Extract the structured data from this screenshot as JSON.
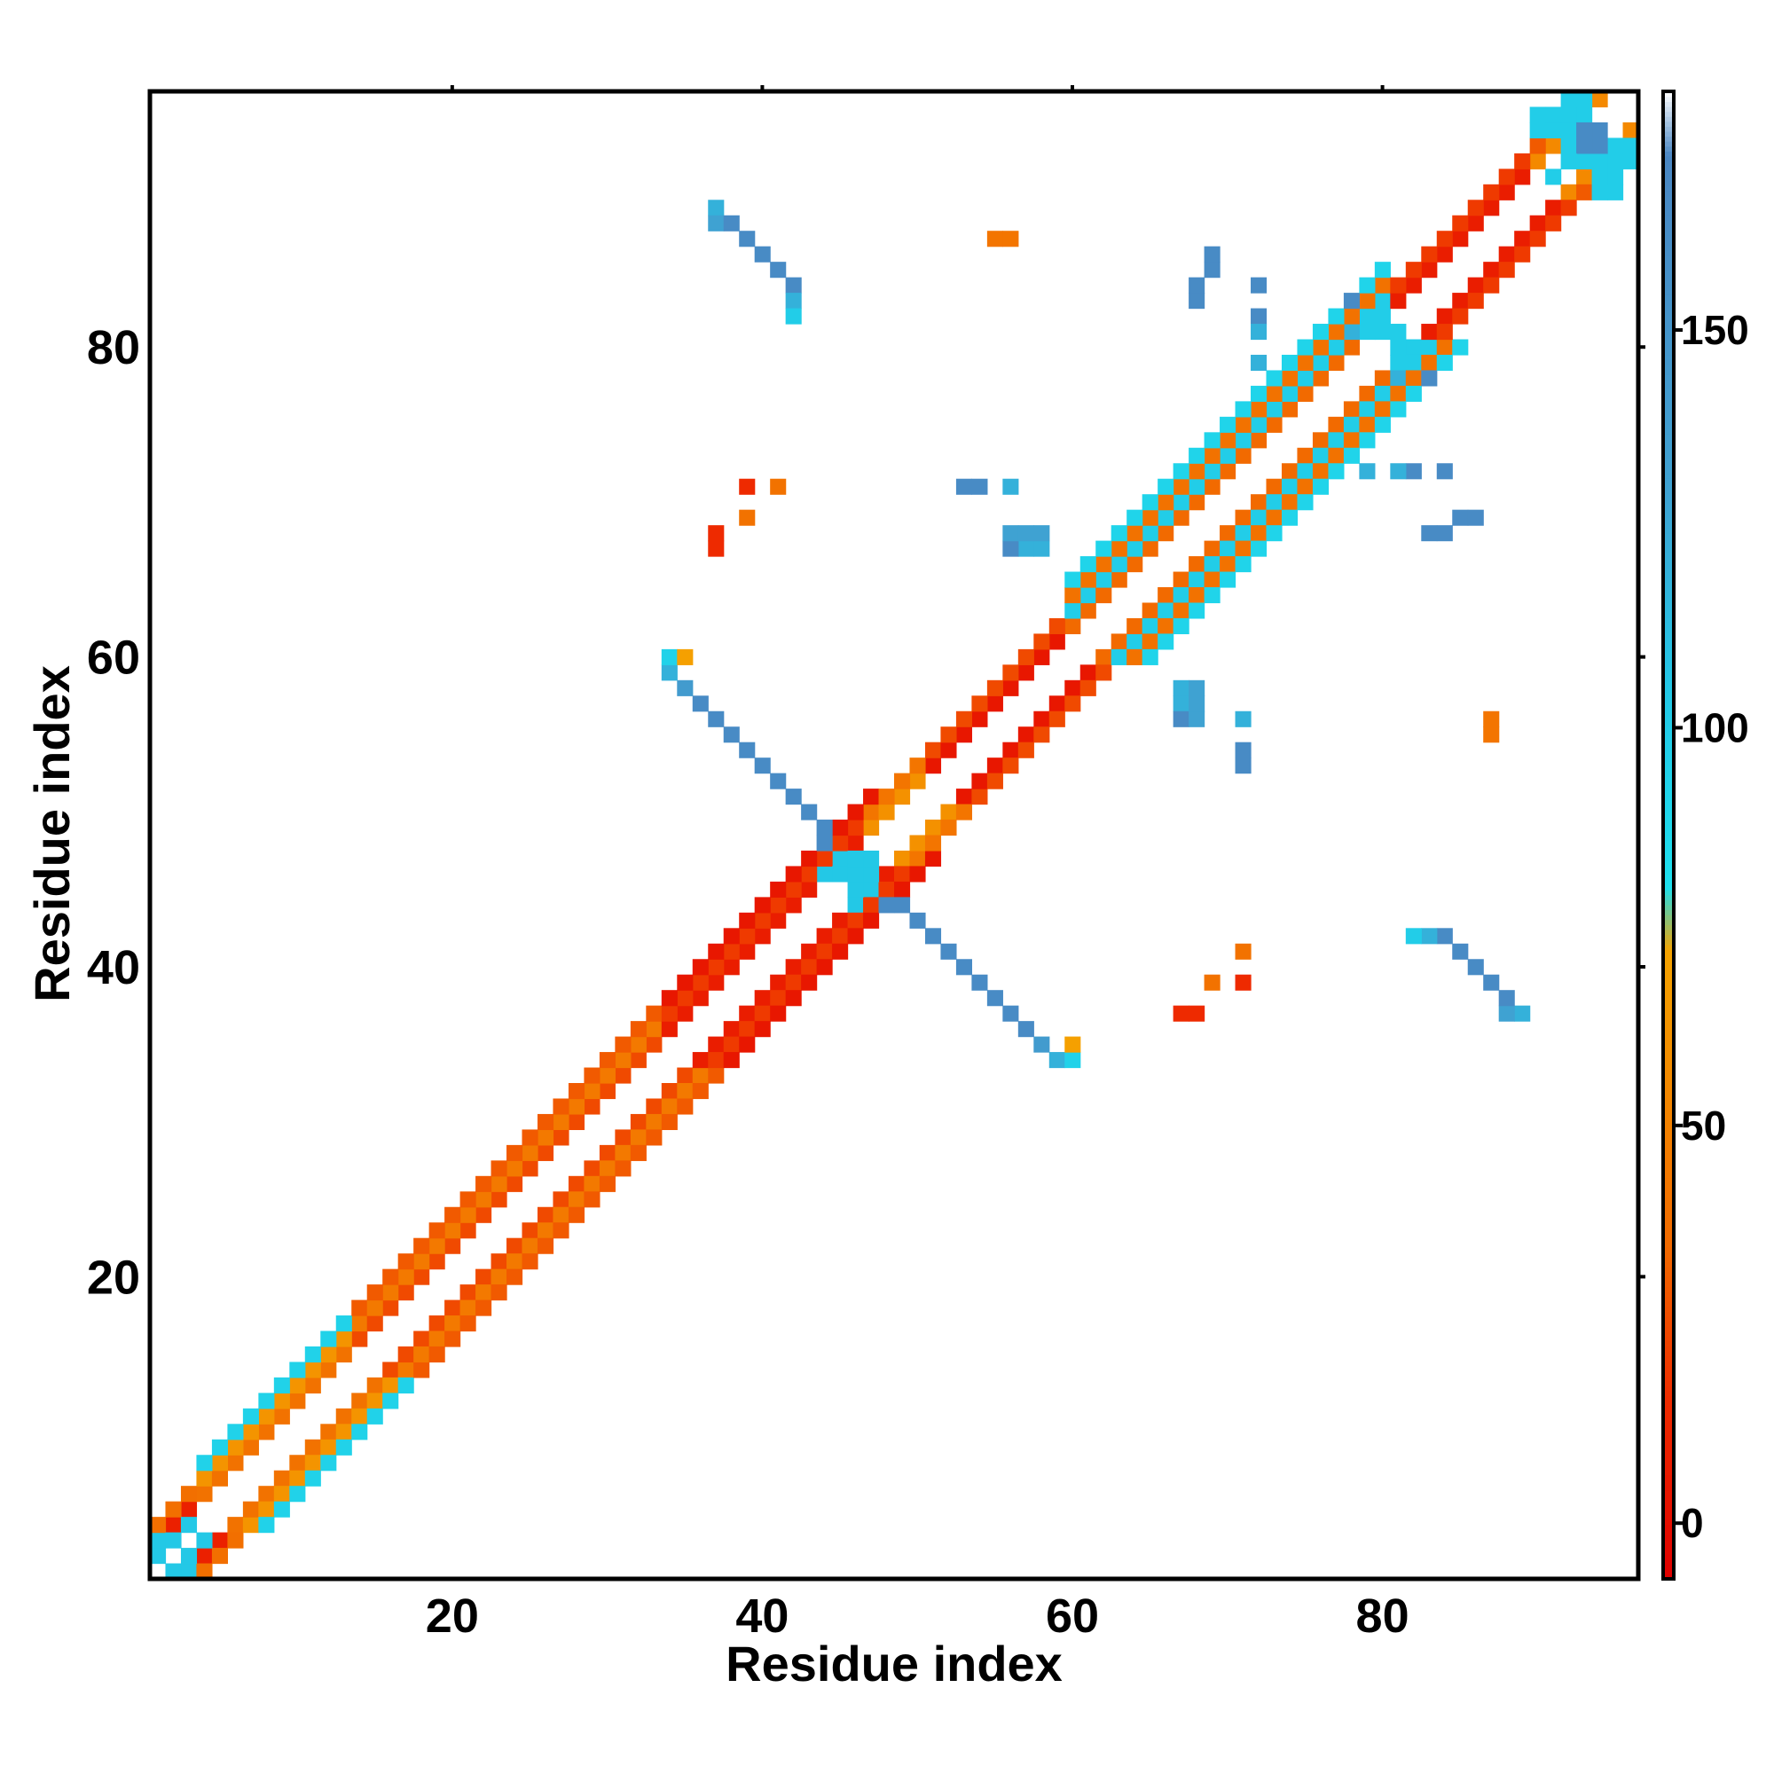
{
  "chart_data": {
    "type": "heatmap",
    "title": "",
    "xlabel": "Residue index",
    "ylabel": "Residue index",
    "xlim": [
      0.5,
      96.5
    ],
    "ylim": [
      0.5,
      96.5
    ],
    "x_ticks": [
      20,
      40,
      60,
      80
    ],
    "y_ticks": [
      20,
      40,
      60,
      80
    ],
    "colorbar": {
      "ticks": [
        0,
        50,
        100,
        150
      ],
      "range": [
        -7,
        180
      ],
      "stops": [
        {
          "value": -7,
          "color": "#e00000"
        },
        {
          "value": 15,
          "color": "#ee2a00"
        },
        {
          "value": 35,
          "color": "#f26a00"
        },
        {
          "value": 72,
          "color": "#f5a300"
        },
        {
          "value": 80,
          "color": "#1ee0ee"
        },
        {
          "value": 105,
          "color": "#23c8e6"
        },
        {
          "value": 130,
          "color": "#3fa2d2"
        },
        {
          "value": 172,
          "color": "#4a86c2"
        },
        {
          "value": 180,
          "color": "#ffffff"
        }
      ]
    },
    "pair_value_rule": "value(i,j) = value(j,i); cells with |i-j| = 1 or those not listed are empty (white)",
    "segments": [
      {
        "residues": [
          1,
          4
        ],
        "i_minus_j": 2,
        "value": 10
      },
      {
        "residues": [
          1,
          4
        ],
        "i_minus_j": 3,
        "value": 38
      },
      {
        "residues": [
          1,
          3
        ],
        "i_minus_j": 1,
        "value": 105
      },
      {
        "residues": [
          4,
          14
        ],
        "i_minus_j": 2,
        "value": 40
      },
      {
        "residues": [
          4,
          14
        ],
        "i_minus_j": 3,
        "value": 62
      },
      {
        "residues": [
          4,
          14
        ],
        "i_minus_j": 4,
        "value": 95
      },
      {
        "residues": [
          14,
          33
        ],
        "i_minus_j": 2,
        "value": 25
      },
      {
        "residues": [
          14,
          33
        ],
        "i_minus_j": 3,
        "value": 45
      },
      {
        "residues": [
          14,
          33
        ],
        "i_minus_j": 4,
        "value": 30
      },
      {
        "residues": [
          34,
          47
        ],
        "i_minus_j": 2,
        "value": 8
      },
      {
        "residues": [
          34,
          47
        ],
        "i_minus_j": 3,
        "value": 20
      },
      {
        "residues": [
          34,
          47
        ],
        "i_minus_j": 4,
        "value": 5
      },
      {
        "residues": [
          47,
          51
        ],
        "i_minus_j": 2,
        "value": 60
      },
      {
        "residues": [
          47,
          51
        ],
        "i_minus_j": 3,
        "value": 42
      },
      {
        "residues": [
          51,
          61
        ],
        "i_minus_j": 2,
        "value": 5
      },
      {
        "residues": [
          51,
          61
        ],
        "i_minus_j": 3,
        "value": 25
      },
      {
        "residues": [
          60,
          80
        ],
        "i_minus_j": 2,
        "value": 35
      },
      {
        "residues": [
          60,
          80
        ],
        "i_minus_j": 3,
        "value": 100
      },
      {
        "residues": [
          60,
          80
        ],
        "i_minus_j": 4,
        "value": 40
      },
      {
        "residues": [
          60,
          80
        ],
        "i_minus_j": 5,
        "value": 92
      },
      {
        "residues": [
          80,
          92
        ],
        "i_minus_j": 2,
        "value": 8
      },
      {
        "residues": [
          80,
          92
        ],
        "i_minus_j": 3,
        "value": 20
      },
      {
        "residues": [
          90,
          96
        ],
        "i_minus_j": 2,
        "value": 55
      },
      {
        "residues": [
          90,
          96
        ],
        "i_minus_j": 3,
        "value": 30
      }
    ],
    "cells": [
      {
        "x": 2,
        "y": 1,
        "value": 105
      },
      {
        "x": 3,
        "y": 1,
        "value": 105
      },
      {
        "x": 45,
        "y": 46,
        "value": 105
      },
      {
        "x": 46,
        "y": 45,
        "value": 105
      },
      {
        "x": 46,
        "y": 46,
        "value": 105
      },
      {
        "x": 45,
        "y": 47,
        "value": 105
      },
      {
        "x": 47,
        "y": 45,
        "value": 105
      },
      {
        "x": 46,
        "y": 47,
        "value": 105
      },
      {
        "x": 47,
        "y": 46,
        "value": 105
      },
      {
        "x": 46,
        "y": 44,
        "value": 105
      },
      {
        "x": 44,
        "y": 46,
        "value": 105
      },
      {
        "x": 47,
        "y": 47,
        "value": 105
      },
      {
        "x": 48,
        "y": 44,
        "value": 165
      },
      {
        "x": 49,
        "y": 44,
        "value": 165
      },
      {
        "x": 50,
        "y": 43,
        "value": 165
      },
      {
        "x": 51,
        "y": 42,
        "value": 165
      },
      {
        "x": 52,
        "y": 41,
        "value": 165
      },
      {
        "x": 53,
        "y": 40,
        "value": 165
      },
      {
        "x": 54,
        "y": 39,
        "value": 165
      },
      {
        "x": 55,
        "y": 38,
        "value": 165
      },
      {
        "x": 56,
        "y": 37,
        "value": 165
      },
      {
        "x": 57,
        "y": 36,
        "value": 165
      },
      {
        "x": 58,
        "y": 35,
        "value": 140
      },
      {
        "x": 59,
        "y": 34,
        "value": 120
      },
      {
        "x": 60,
        "y": 34,
        "value": 95
      },
      {
        "x": 60,
        "y": 35,
        "value": 70
      },
      {
        "x": 44,
        "y": 48,
        "value": 165
      },
      {
        "x": 44,
        "y": 49,
        "value": 165
      },
      {
        "x": 43,
        "y": 50,
        "value": 165
      },
      {
        "x": 42,
        "y": 51,
        "value": 165
      },
      {
        "x": 41,
        "y": 52,
        "value": 165
      },
      {
        "x": 40,
        "y": 53,
        "value": 165
      },
      {
        "x": 39,
        "y": 54,
        "value": 165
      },
      {
        "x": 38,
        "y": 55,
        "value": 165
      },
      {
        "x": 37,
        "y": 56,
        "value": 165
      },
      {
        "x": 36,
        "y": 57,
        "value": 165
      },
      {
        "x": 35,
        "y": 58,
        "value": 140
      },
      {
        "x": 34,
        "y": 59,
        "value": 120
      },
      {
        "x": 34,
        "y": 60,
        "value": 95
      },
      {
        "x": 35,
        "y": 60,
        "value": 70
      },
      {
        "x": 37,
        "y": 89,
        "value": 120
      },
      {
        "x": 37,
        "y": 88,
        "value": 130
      },
      {
        "x": 38,
        "y": 88,
        "value": 165
      },
      {
        "x": 39,
        "y": 87,
        "value": 165
      },
      {
        "x": 40,
        "y": 86,
        "value": 165
      },
      {
        "x": 41,
        "y": 85,
        "value": 165
      },
      {
        "x": 42,
        "y": 84,
        "value": 165
      },
      {
        "x": 42,
        "y": 83,
        "value": 120
      },
      {
        "x": 42,
        "y": 82,
        "value": 100
      },
      {
        "x": 89,
        "y": 37,
        "value": 120
      },
      {
        "x": 88,
        "y": 37,
        "value": 130
      },
      {
        "x": 88,
        "y": 38,
        "value": 165
      },
      {
        "x": 87,
        "y": 39,
        "value": 165
      },
      {
        "x": 86,
        "y": 40,
        "value": 165
      },
      {
        "x": 85,
        "y": 41,
        "value": 165
      },
      {
        "x": 84,
        "y": 42,
        "value": 165
      },
      {
        "x": 83,
        "y": 42,
        "value": 120
      },
      {
        "x": 82,
        "y": 42,
        "value": 100
      },
      {
        "x": 55,
        "y": 87,
        "value": 42
      },
      {
        "x": 56,
        "y": 87,
        "value": 42
      },
      {
        "x": 87,
        "y": 56,
        "value": 42
      },
      {
        "x": 87,
        "y": 55,
        "value": 42
      },
      {
        "x": 68,
        "y": 84,
        "value": 165
      },
      {
        "x": 68,
        "y": 83,
        "value": 165
      },
      {
        "x": 72,
        "y": 82,
        "value": 165
      },
      {
        "x": 72,
        "y": 79,
        "value": 120
      },
      {
        "x": 71,
        "y": 56,
        "value": 120
      },
      {
        "x": 71,
        "y": 54,
        "value": 165
      },
      {
        "x": 71,
        "y": 53,
        "value": 165
      },
      {
        "x": 67,
        "y": 58,
        "value": 120
      },
      {
        "x": 67,
        "y": 57,
        "value": 120
      },
      {
        "x": 67,
        "y": 56,
        "value": 165
      },
      {
        "x": 53,
        "y": 71,
        "value": 165
      },
      {
        "x": 54,
        "y": 71,
        "value": 165
      },
      {
        "x": 56,
        "y": 71,
        "value": 120
      },
      {
        "x": 56,
        "y": 68,
        "value": 130
      },
      {
        "x": 57,
        "y": 68,
        "value": 130
      },
      {
        "x": 58,
        "y": 68,
        "value": 130
      },
      {
        "x": 81,
        "y": 72,
        "value": 120
      },
      {
        "x": 84,
        "y": 72,
        "value": 165
      },
      {
        "x": 85,
        "y": 69,
        "value": 165
      },
      {
        "x": 86,
        "y": 69,
        "value": 165
      },
      {
        "x": 39,
        "y": 71,
        "value": 15
      },
      {
        "x": 41,
        "y": 71,
        "value": 40
      },
      {
        "x": 39,
        "y": 69,
        "value": 40
      },
      {
        "x": 37,
        "y": 68,
        "value": 15
      },
      {
        "x": 71,
        "y": 41,
        "value": 40
      },
      {
        "x": 71,
        "y": 39,
        "value": 15
      },
      {
        "x": 69,
        "y": 39,
        "value": 40
      },
      {
        "x": 67,
        "y": 37,
        "value": 15
      },
      {
        "x": 91,
        "y": 95,
        "value": 165
      },
      {
        "x": 92,
        "y": 96,
        "value": 140
      },
      {
        "x": 93,
        "y": 96,
        "value": 140
      },
      {
        "x": 92,
        "y": 95,
        "value": 165
      },
      {
        "x": 93,
        "y": 95,
        "value": 165
      },
      {
        "x": 94,
        "y": 94,
        "value": 165
      },
      {
        "x": 93,
        "y": 94,
        "value": 165
      },
      {
        "x": 92,
        "y": 93,
        "value": 165
      },
      {
        "x": 93,
        "y": 93,
        "value": 165
      },
      {
        "x": 94,
        "y": 93,
        "value": 165
      },
      {
        "x": 93,
        "y": 92,
        "value": 100
      },
      {
        "x": 94,
        "y": 92,
        "value": 100
      },
      {
        "x": 92,
        "y": 92,
        "value": 100
      },
      {
        "x": 94,
        "y": 91,
        "value": 100
      },
      {
        "x": 95,
        "y": 90,
        "value": 100
      },
      {
        "x": 94,
        "y": 90,
        "value": 100
      },
      {
        "x": 95,
        "y": 91,
        "value": 100
      },
      {
        "x": 95,
        "y": 92,
        "value": 100
      },
      {
        "x": 95,
        "y": 93,
        "value": 100
      },
      {
        "x": 96,
        "y": 93,
        "value": 100
      },
      {
        "x": 96,
        "y": 92,
        "value": 100
      },
      {
        "x": 91,
        "y": 91,
        "value": 100
      },
      {
        "x": 79,
        "y": 82,
        "value": 100
      },
      {
        "x": 80,
        "y": 82,
        "value": 165
      },
      {
        "x": 80,
        "y": 81,
        "value": 100
      },
      {
        "x": 81,
        "y": 81,
        "value": 100
      },
      {
        "x": 82,
        "y": 80,
        "value": 100
      },
      {
        "x": 82,
        "y": 79,
        "value": 100
      },
      {
        "x": 83,
        "y": 80,
        "value": 100
      },
      {
        "x": 83,
        "y": 78,
        "value": 165
      },
      {
        "x": 81,
        "y": 79,
        "value": 100
      },
      {
        "x": 78,
        "y": 81,
        "value": 120
      }
    ]
  }
}
